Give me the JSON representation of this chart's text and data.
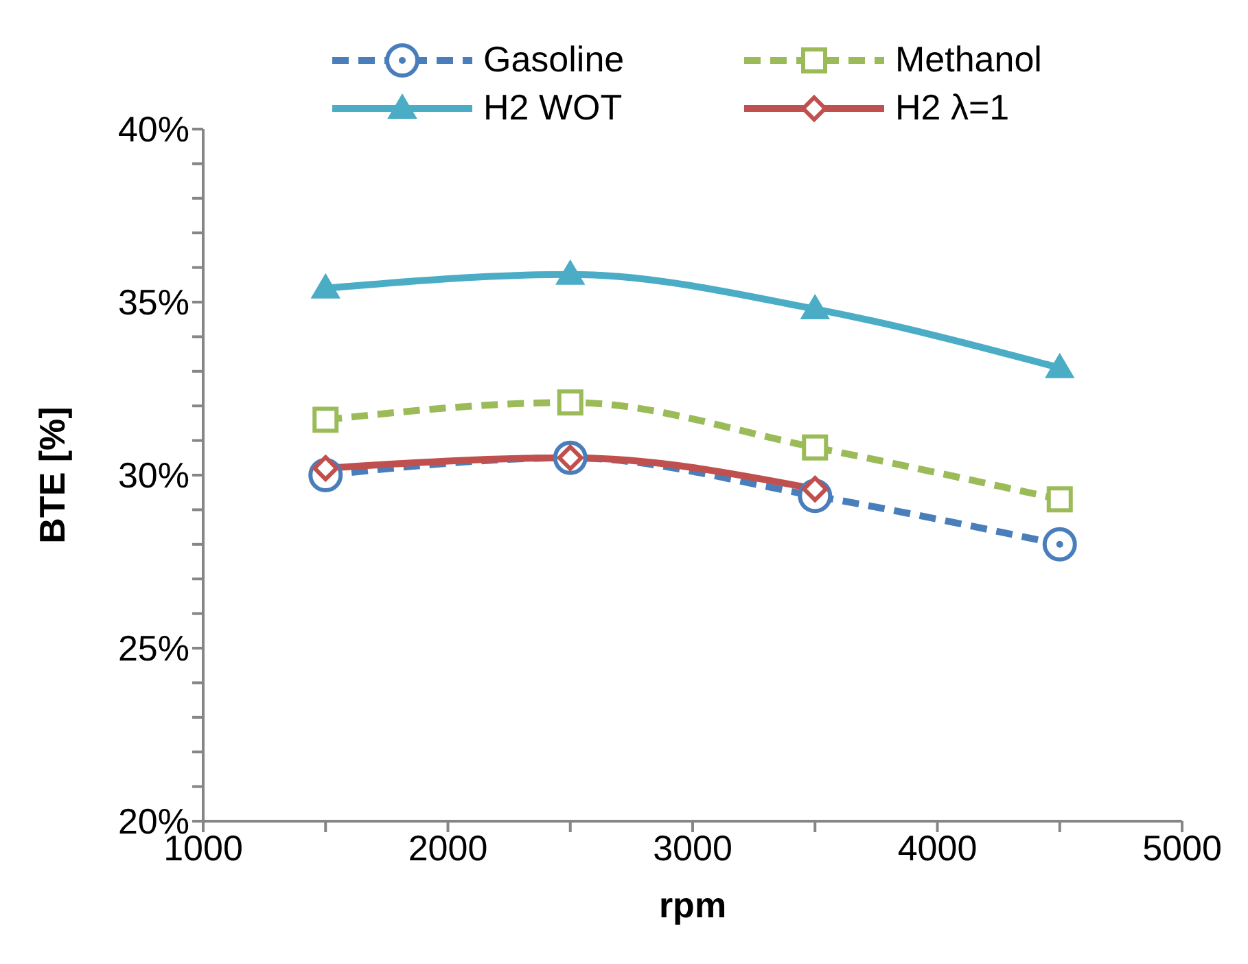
{
  "chart_data": {
    "type": "line",
    "xlabel": "rpm",
    "ylabel": "BTE [%]",
    "x": [
      1500,
      2500,
      3500,
      4500
    ],
    "xlim": [
      1000,
      5000
    ],
    "xticks": [
      1000,
      {
        "value": 1500,
        "label": null
      },
      2000,
      {
        "value": 2500,
        "label": null
      },
      3000,
      {
        "value": 3500,
        "label": null
      },
      4000,
      {
        "value": 4500,
        "label": null
      },
      5000
    ],
    "ylim": [
      20,
      40
    ],
    "yticks": [
      {
        "value": 20,
        "label": "20%"
      },
      {
        "value": 21,
        "label": null
      },
      {
        "value": 22,
        "label": null
      },
      {
        "value": 23,
        "label": null
      },
      {
        "value": 24,
        "label": null
      },
      {
        "value": 25,
        "label": "25%"
      },
      {
        "value": 26,
        "label": null
      },
      {
        "value": 27,
        "label": null
      },
      {
        "value": 28,
        "label": null
      },
      {
        "value": 29,
        "label": null
      },
      {
        "value": 30,
        "label": "30%"
      },
      {
        "value": 31,
        "label": null
      },
      {
        "value": 32,
        "label": null
      },
      {
        "value": 33,
        "label": null
      },
      {
        "value": 34,
        "label": null
      },
      {
        "value": 35,
        "label": "35%"
      },
      {
        "value": 36,
        "label": null
      },
      {
        "value": 37,
        "label": null
      },
      {
        "value": 38,
        "label": null
      },
      {
        "value": 39,
        "label": null
      },
      {
        "value": 40,
        "label": "40%"
      }
    ],
    "grid": false,
    "legend": "top",
    "series": [
      {
        "name": "Gasoline",
        "color": "#4a7ebb",
        "values": [
          30.0,
          30.5,
          29.4,
          28.0
        ],
        "marker": "circle",
        "line_style": "dashed"
      },
      {
        "name": "Methanol",
        "color": "#9bbb59",
        "values": [
          31.6,
          32.1,
          30.8,
          29.3
        ],
        "marker": "square",
        "line_style": "dashed"
      },
      {
        "name": "H2 WOT",
        "color": "#4bacc6",
        "values": [
          35.4,
          35.8,
          34.8,
          33.1
        ],
        "marker": "triangle",
        "line_style": "solid"
      },
      {
        "name": "H2 λ=1",
        "color": "#c0504d",
        "values": [
          30.2,
          30.5,
          29.6,
          null
        ],
        "marker": "diamond",
        "line_style": "solid"
      }
    ]
  }
}
